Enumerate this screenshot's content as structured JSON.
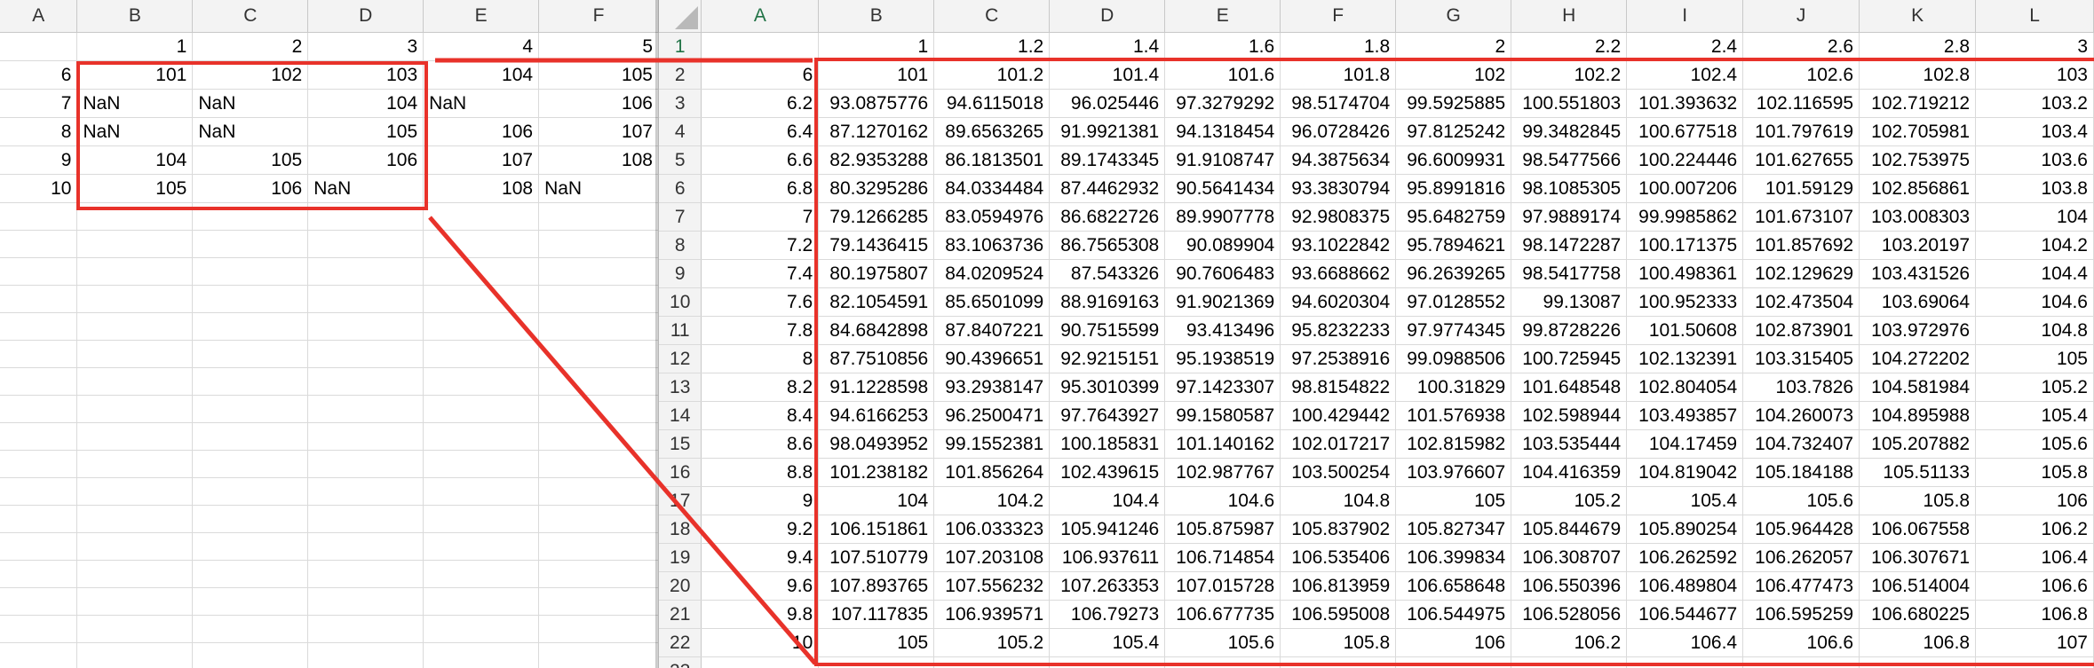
{
  "left_sheet": {
    "columns": [
      "A",
      "B",
      "C",
      "D",
      "E",
      "F"
    ],
    "rows": [
      [
        "",
        "1",
        "2",
        "3",
        "4",
        "5"
      ],
      [
        "6",
        "101",
        "102",
        "103",
        "104",
        "105"
      ],
      [
        "7",
        "NaN",
        "NaN",
        "104",
        "NaN",
        "106"
      ],
      [
        "8",
        "NaN",
        "NaN",
        "105",
        "106",
        "107"
      ],
      [
        "9",
        "104",
        "105",
        "106",
        "107",
        "108"
      ],
      [
        "10",
        "105",
        "106",
        "NaN",
        "108",
        "NaN"
      ],
      [
        "",
        "",
        "",
        "",
        "",
        ""
      ],
      [
        "",
        "",
        "",
        "",
        "",
        ""
      ],
      [
        "",
        "",
        "",
        "",
        "",
        ""
      ],
      [
        "",
        "",
        "",
        "",
        "",
        ""
      ],
      [
        "",
        "",
        "",
        "",
        "",
        ""
      ],
      [
        "",
        "",
        "",
        "",
        "",
        ""
      ],
      [
        "",
        "",
        "",
        "",
        "",
        ""
      ],
      [
        "",
        "",
        "",
        "",
        "",
        ""
      ],
      [
        "",
        "",
        "",
        "",
        "",
        ""
      ],
      [
        "",
        "",
        "",
        "",
        "",
        ""
      ],
      [
        "",
        "",
        "",
        "",
        "",
        ""
      ],
      [
        "",
        "",
        "",
        "",
        "",
        ""
      ],
      [
        "",
        "",
        "",
        "",
        "",
        ""
      ],
      [
        "",
        "",
        "",
        "",
        "",
        ""
      ],
      [
        "",
        "",
        "",
        "",
        "",
        ""
      ],
      [
        "",
        "",
        "",
        "",
        "",
        ""
      ],
      [
        "",
        "",
        "",
        "",
        "",
        ""
      ]
    ]
  },
  "right_sheet": {
    "columns": [
      "A",
      "B",
      "C",
      "D",
      "E",
      "F",
      "G",
      "H",
      "I",
      "J",
      "K",
      "L"
    ],
    "row_numbers": [
      "1",
      "2",
      "3",
      "4",
      "5",
      "6",
      "7",
      "8",
      "9",
      "10",
      "11",
      "12",
      "13",
      "14",
      "15",
      "16",
      "17",
      "18",
      "19",
      "20",
      "21",
      "22",
      "23"
    ],
    "rows": [
      [
        "",
        "1",
        "1.2",
        "1.4",
        "1.6",
        "1.8",
        "2",
        "2.2",
        "2.4",
        "2.6",
        "2.8",
        "3"
      ],
      [
        "6",
        "101",
        "101.2",
        "101.4",
        "101.6",
        "101.8",
        "102",
        "102.2",
        "102.4",
        "102.6",
        "102.8",
        "103"
      ],
      [
        "6.2",
        "93.0875776",
        "94.6115018",
        "96.025446",
        "97.3279292",
        "98.5174704",
        "99.5925885",
        "100.551803",
        "101.393632",
        "102.116595",
        "102.719212",
        "103.2"
      ],
      [
        "6.4",
        "87.1270162",
        "89.6563265",
        "91.9921381",
        "94.1318454",
        "96.0728426",
        "97.8125242",
        "99.3482845",
        "100.677518",
        "101.797619",
        "102.705981",
        "103.4"
      ],
      [
        "6.6",
        "82.9353288",
        "86.1813501",
        "89.1743345",
        "91.9108747",
        "94.3875634",
        "96.6009931",
        "98.5477566",
        "100.224446",
        "101.627655",
        "102.753975",
        "103.6"
      ],
      [
        "6.8",
        "80.3295286",
        "84.0334484",
        "87.4462932",
        "90.5641434",
        "93.3830794",
        "95.8991816",
        "98.1085305",
        "100.007206",
        "101.59129",
        "102.856861",
        "103.8"
      ],
      [
        "7",
        "79.1266285",
        "83.0594976",
        "86.6822726",
        "89.9907778",
        "92.9808375",
        "95.6482759",
        "97.9889174",
        "99.9985862",
        "101.673107",
        "103.008303",
        "104"
      ],
      [
        "7.2",
        "79.1436415",
        "83.1063736",
        "86.7565308",
        "90.089904",
        "93.1022842",
        "95.7894621",
        "98.1472287",
        "100.171375",
        "101.857692",
        "103.20197",
        "104.2"
      ],
      [
        "7.4",
        "80.1975807",
        "84.0209524",
        "87.543326",
        "90.7606483",
        "93.6688662",
        "96.2639265",
        "98.5417758",
        "100.498361",
        "102.129629",
        "103.431526",
        "104.4"
      ],
      [
        "7.6",
        "82.1054591",
        "85.6501099",
        "88.9169163",
        "91.9021369",
        "94.6020304",
        "97.0128552",
        "99.13087",
        "100.952333",
        "102.473504",
        "103.69064",
        "104.6"
      ],
      [
        "7.8",
        "84.6842898",
        "87.8407221",
        "90.7515599",
        "93.413496",
        "95.8232233",
        "97.9774345",
        "99.8728226",
        "101.50608",
        "102.873901",
        "103.972976",
        "104.8"
      ],
      [
        "8",
        "87.7510856",
        "90.4396651",
        "92.9215151",
        "95.1938519",
        "97.2538916",
        "99.0988506",
        "100.725945",
        "102.132391",
        "103.315405",
        "104.272202",
        "105"
      ],
      [
        "8.2",
        "91.1228598",
        "93.2938147",
        "95.3010399",
        "97.1423307",
        "98.8154822",
        "100.31829",
        "101.648548",
        "102.804054",
        "103.7826",
        "104.581984",
        "105.2"
      ],
      [
        "8.4",
        "94.6166253",
        "96.2500471",
        "97.7643927",
        "99.1580587",
        "100.429442",
        "101.576938",
        "102.598944",
        "103.493857",
        "104.260073",
        "104.895988",
        "105.4"
      ],
      [
        "8.6",
        "98.0493952",
        "99.1552381",
        "100.185831",
        "101.140162",
        "102.017217",
        "102.815982",
        "103.535444",
        "104.17459",
        "104.732407",
        "105.207882",
        "105.6"
      ],
      [
        "8.8",
        "101.238182",
        "101.856264",
        "102.439615",
        "102.987767",
        "103.500254",
        "103.976607",
        "104.416359",
        "104.819042",
        "105.184188",
        "105.51133",
        "105.8"
      ],
      [
        "9",
        "104",
        "104.2",
        "104.4",
        "104.6",
        "104.8",
        "105",
        "105.2",
        "105.4",
        "105.6",
        "105.8",
        "106"
      ],
      [
        "9.2",
        "106.151861",
        "106.033323",
        "105.941246",
        "105.875987",
        "105.837902",
        "105.827347",
        "105.844679",
        "105.890254",
        "105.964428",
        "106.067558",
        "106.2"
      ],
      [
        "9.4",
        "107.510779",
        "107.203108",
        "106.937611",
        "106.714854",
        "106.535406",
        "106.399834",
        "106.308707",
        "106.262592",
        "106.262057",
        "106.307671",
        "106.4"
      ],
      [
        "9.6",
        "107.893765",
        "107.556232",
        "107.263353",
        "107.015728",
        "106.813959",
        "106.658648",
        "106.550396",
        "106.489804",
        "106.477473",
        "106.514004",
        "106.6"
      ],
      [
        "9.8",
        "107.117835",
        "106.939571",
        "106.79273",
        "106.677735",
        "106.595008",
        "106.544975",
        "106.528056",
        "106.544677",
        "106.595259",
        "106.680225",
        "106.8"
      ],
      [
        "10",
        "105",
        "105.2",
        "105.4",
        "105.6",
        "105.8",
        "106",
        "106.2",
        "106.4",
        "106.6",
        "106.8",
        "107"
      ],
      [
        "",
        "",
        "",
        "",
        "",
        "",
        "",
        "",
        "",
        "",
        "",
        ""
      ]
    ]
  },
  "annotation_color": "#e8322a"
}
